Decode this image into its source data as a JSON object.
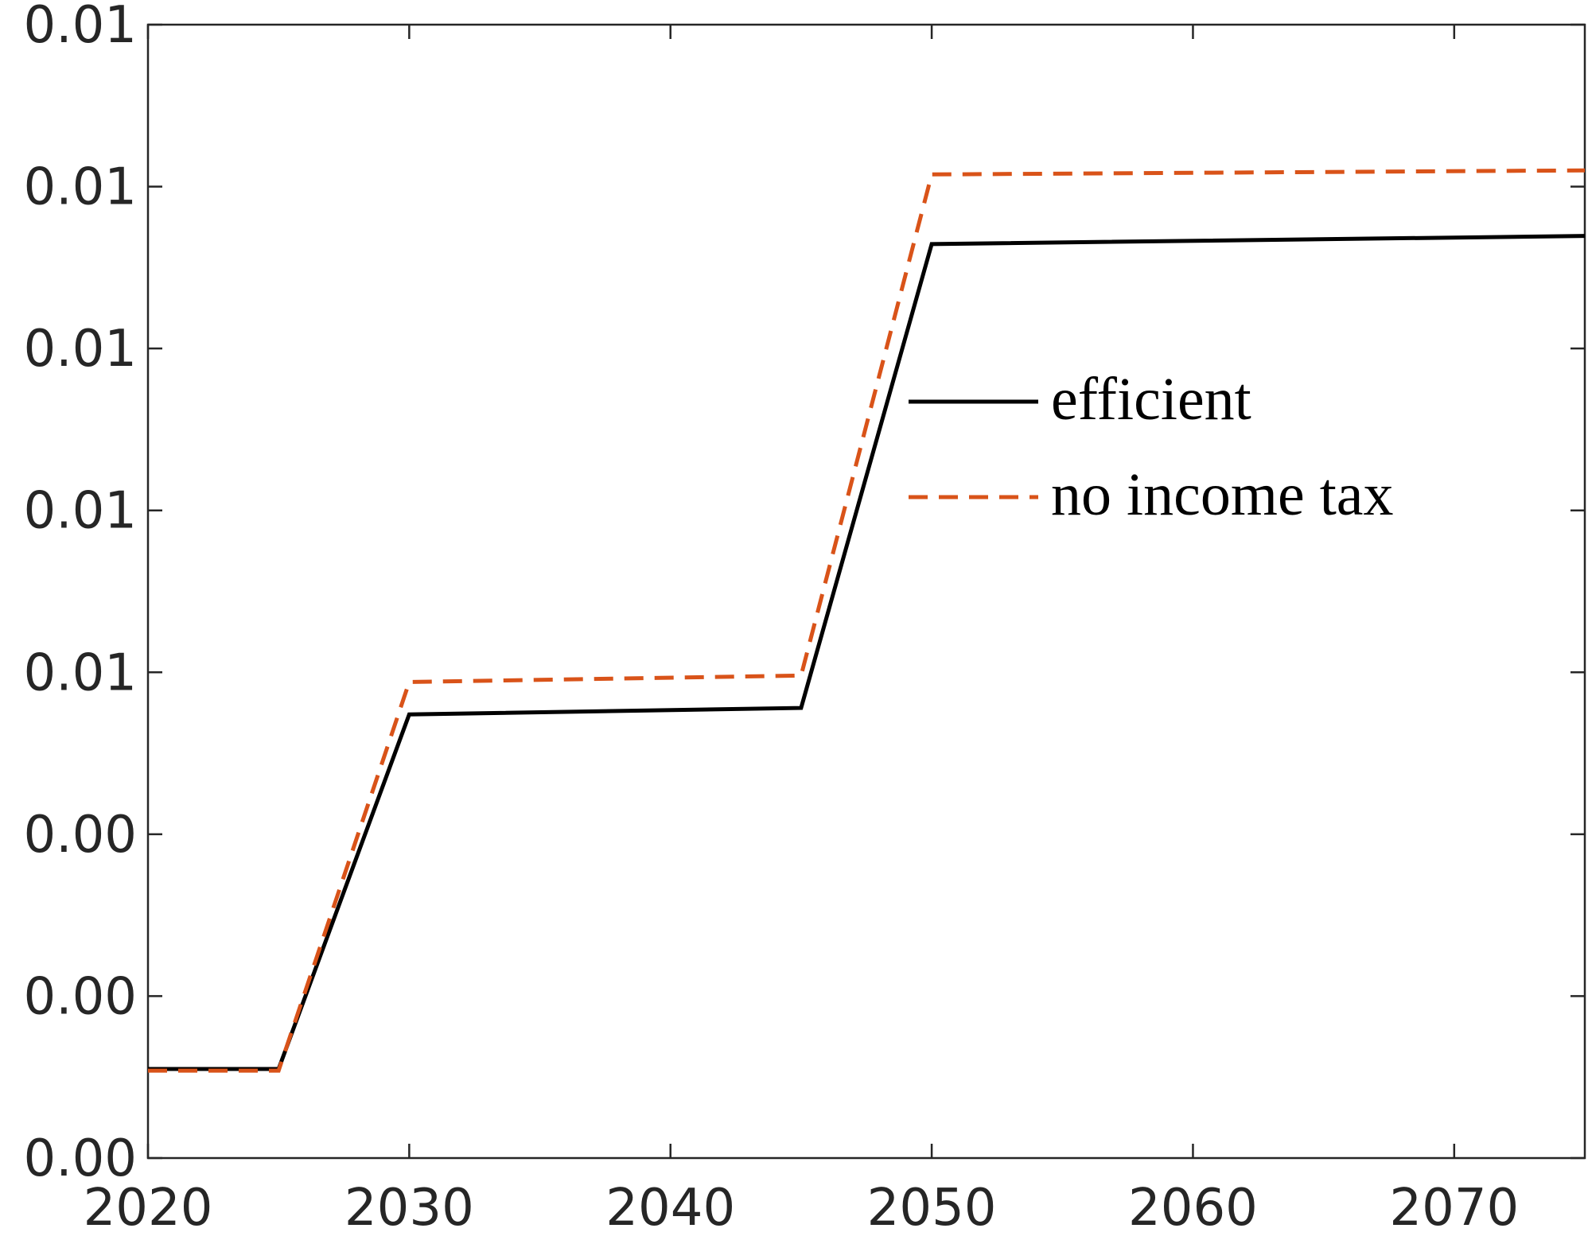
{
  "chart_data": {
    "type": "line",
    "x": [
      2020,
      2025,
      2030,
      2045,
      2050,
      2075
    ],
    "series": [
      {
        "name": "efficient",
        "color": "#000000",
        "dash": "solid",
        "values": [
          0.0011,
          0.0011,
          0.00548,
          0.00556,
          0.01129,
          0.01139
        ]
      },
      {
        "name": "no income tax",
        "color": "#d95319",
        "dash": "dashed",
        "values": [
          0.00108,
          0.00108,
          0.00588,
          0.00596,
          0.01215,
          0.0122
        ]
      }
    ],
    "xlim": [
      2020,
      2075
    ],
    "xticks": [
      2020,
      2030,
      2040,
      2050,
      2060,
      2070
    ],
    "ylim": [
      0,
      0.014
    ],
    "yticks": [
      {
        "value": 0,
        "label": "0.00"
      },
      {
        "value": 0.002,
        "label": "0.00"
      },
      {
        "value": 0.004,
        "label": "0.00"
      },
      {
        "value": 0.006,
        "label": "0.01"
      },
      {
        "value": 0.008,
        "label": "0.01"
      },
      {
        "value": 0.01,
        "label": "0.01"
      },
      {
        "value": 0.012,
        "label": "0.01"
      },
      {
        "value": 0.014,
        "label": "0.01"
      }
    ],
    "legend": "east",
    "grid": false
  }
}
